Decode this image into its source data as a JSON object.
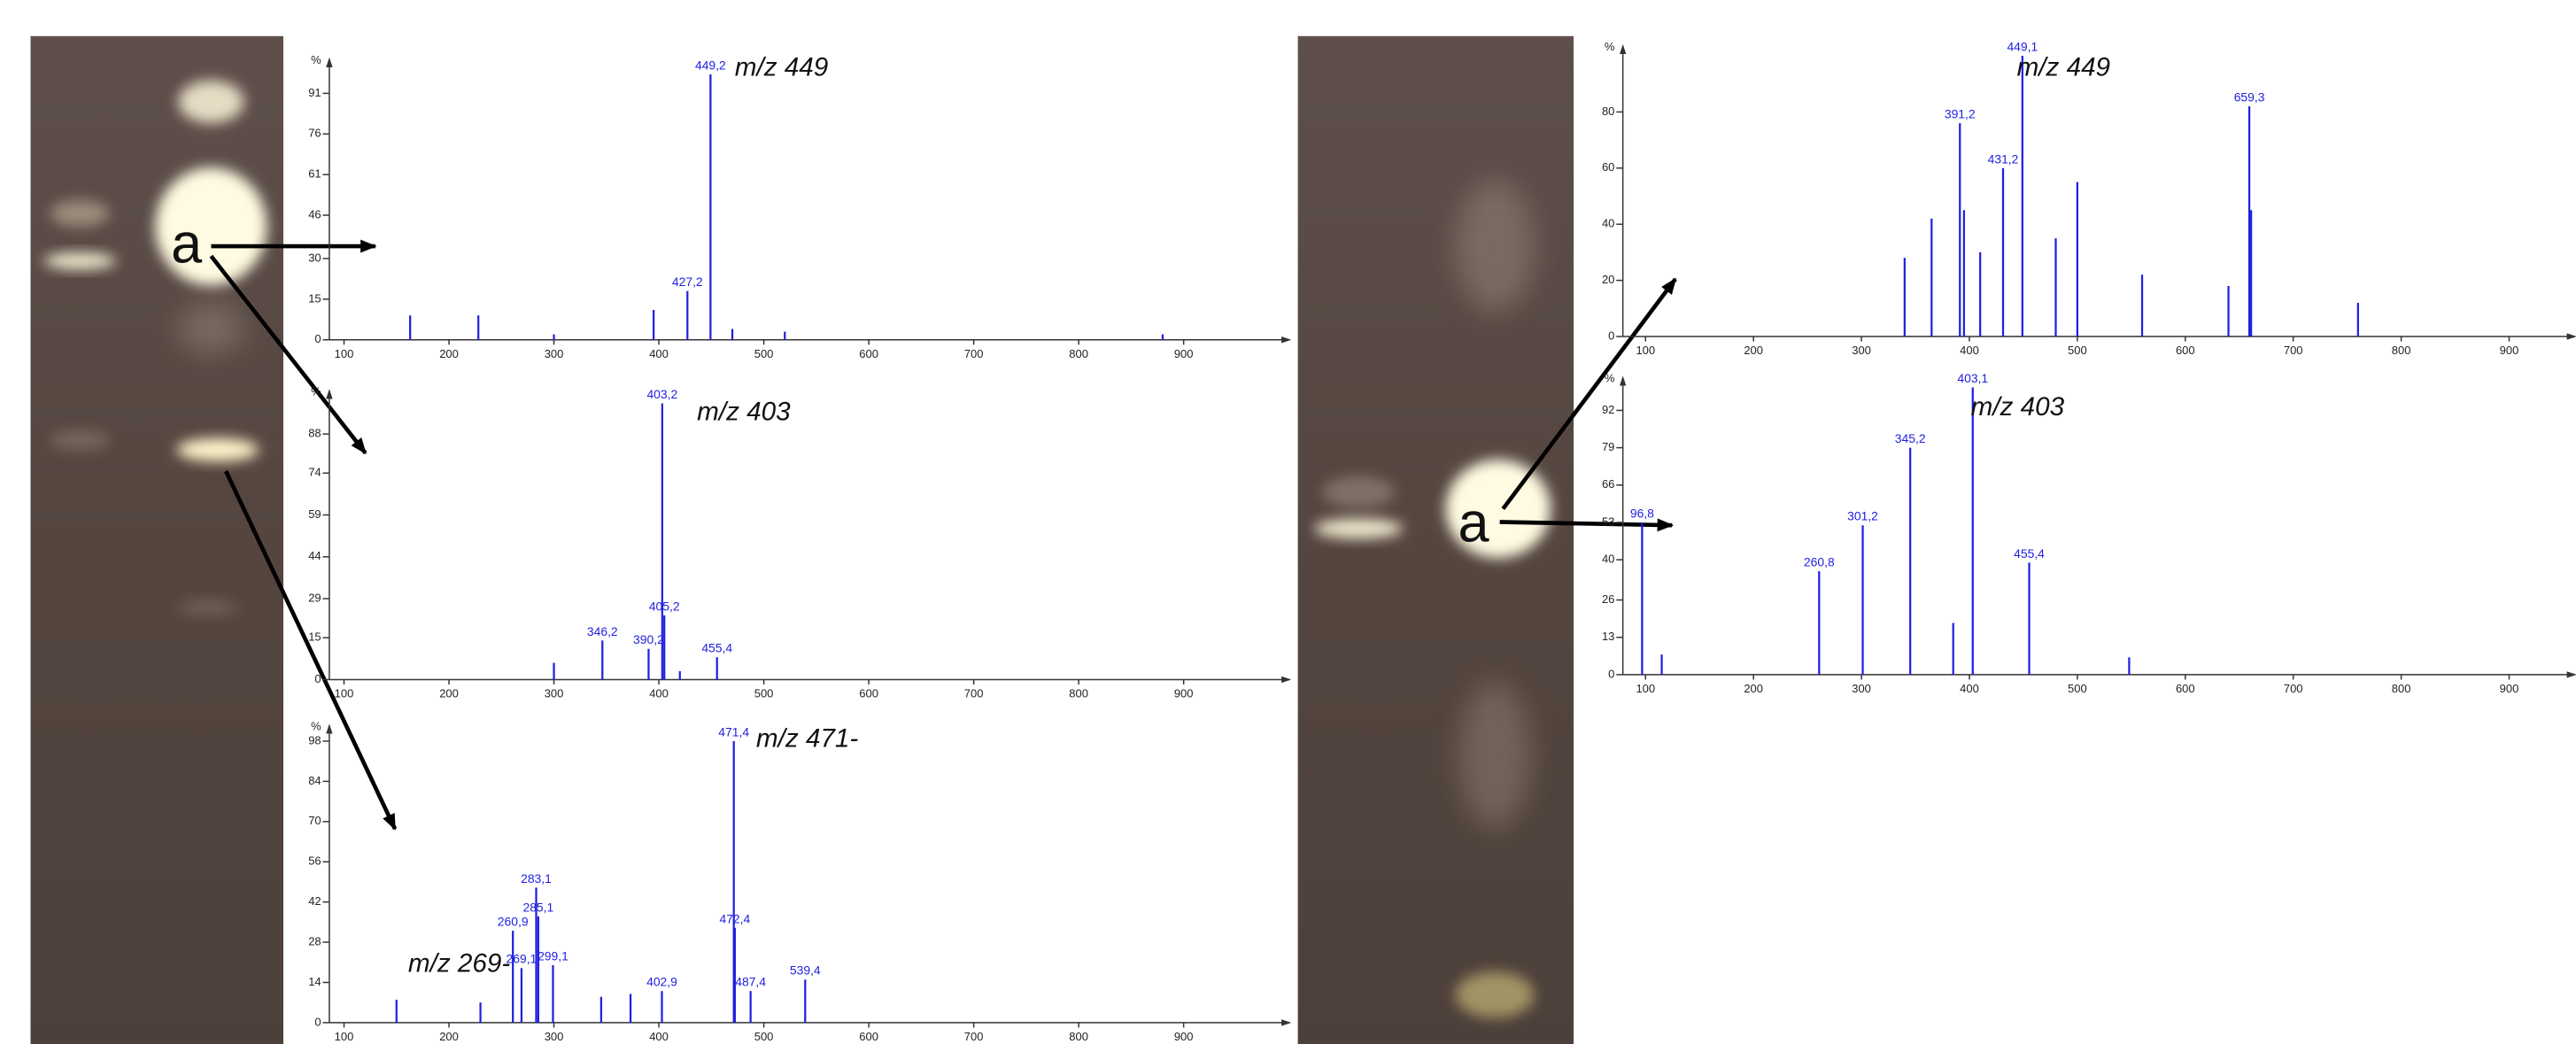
{
  "plate_labels": [
    "a",
    "a"
  ],
  "chart_data": [
    {
      "type": "stem",
      "ylabel": "%",
      "annotations": [
        "m/z 449"
      ],
      "color": "#1f1fe0",
      "x": [
        163,
        228,
        300,
        395,
        427.2,
        449.2,
        470,
        520,
        880
      ],
      "values": [
        9,
        9,
        2,
        11,
        18,
        98,
        4,
        3,
        2
      ],
      "x_labels": [
        null,
        null,
        null,
        null,
        "427,2",
        "449,2",
        null,
        null,
        null
      ],
      "xlim": [
        86,
        1001
      ],
      "xticks": [
        100,
        200,
        300,
        400,
        500,
        600,
        700,
        800,
        900
      ],
      "ylim": [
        0,
        100
      ],
      "yticks": [
        0,
        15,
        30,
        46,
        61,
        76,
        91
      ]
    },
    {
      "type": "stem",
      "ylabel": "%",
      "annotations": [
        "m/z 403"
      ],
      "color": "#1f1fe0",
      "x": [
        300,
        346.2,
        390.2,
        403.2,
        405.2,
        420,
        455.4
      ],
      "values": [
        6,
        14,
        11,
        99,
        23,
        3,
        8
      ],
      "x_labels": [
        null,
        "346,2",
        "390,2",
        "403,2",
        "405,2",
        null,
        "455,4"
      ],
      "xlim": [
        86,
        1001
      ],
      "xticks": [
        100,
        200,
        300,
        400,
        500,
        600,
        700,
        800,
        900
      ],
      "ylim": [
        0,
        100
      ],
      "yticks": [
        0,
        15,
        29,
        44,
        59,
        74,
        88
      ]
    },
    {
      "type": "stem",
      "ylabel": "%",
      "annotations": [
        "m/z 471-",
        "m/z 269-"
      ],
      "color": "#1f1fe0",
      "x": [
        150,
        230,
        260.9,
        269.1,
        283.1,
        285.1,
        299.1,
        345,
        373,
        402.9,
        471.4,
        472.4,
        487.4,
        539.4
      ],
      "values": [
        8,
        7,
        32,
        19,
        47,
        37,
        20,
        9,
        10,
        11,
        98,
        33,
        11,
        15
      ],
      "x_labels": [
        null,
        null,
        "260,9",
        "269,1",
        "283,1",
        "285,1",
        "299,1",
        null,
        null,
        "402,9",
        "471,4",
        "472,4",
        "487,4",
        "539,4"
      ],
      "xlim": [
        86,
        1001
      ],
      "xticks": [
        100,
        200,
        300,
        400,
        500,
        600,
        700,
        800,
        900
      ],
      "ylim": [
        0,
        100
      ],
      "yticks": [
        0,
        14,
        28,
        42,
        56,
        70,
        84,
        98
      ]
    },
    {
      "type": "stem",
      "ylabel": "%",
      "annotations": [
        "m/z 449"
      ],
      "color": "#1f1fe0",
      "x": [
        340,
        365,
        391.2,
        395,
        410,
        431.2,
        449.1,
        480,
        500,
        560,
        640,
        659.3,
        661,
        760
      ],
      "values": [
        28,
        42,
        76,
        45,
        30,
        60,
        100,
        35,
        55,
        22,
        18,
        82,
        45,
        12
      ],
      "x_labels": [
        null,
        null,
        "391,2",
        null,
        null,
        "431,2",
        "449,1",
        null,
        null,
        null,
        null,
        "659,3",
        null,
        null
      ],
      "xlim": [
        79,
        961
      ],
      "xticks": [
        100,
        200,
        300,
        400,
        500,
        600,
        700,
        800,
        900
      ],
      "ylim": [
        0,
        100
      ],
      "yticks": [
        0,
        20,
        40,
        60,
        80
      ]
    },
    {
      "type": "stem",
      "ylabel": "%",
      "annotations": [
        "m/z 403"
      ],
      "color": "#1f1fe0",
      "x": [
        96.8,
        115,
        260.8,
        301.2,
        345.2,
        385,
        403.1,
        455.4,
        548
      ],
      "values": [
        53,
        7,
        36,
        52,
        79,
        18,
        100,
        39,
        6
      ],
      "x_labels": [
        "96,8",
        null,
        "260,8",
        "301,2",
        "345,2",
        null,
        "403,1",
        "455,4",
        null
      ],
      "xlim": [
        79,
        961
      ],
      "xticks": [
        100,
        200,
        300,
        400,
        500,
        600,
        700,
        800,
        900
      ],
      "ylim": [
        0,
        100
      ],
      "yticks": [
        0,
        13,
        26,
        40,
        53,
        66,
        79,
        92
      ]
    }
  ]
}
